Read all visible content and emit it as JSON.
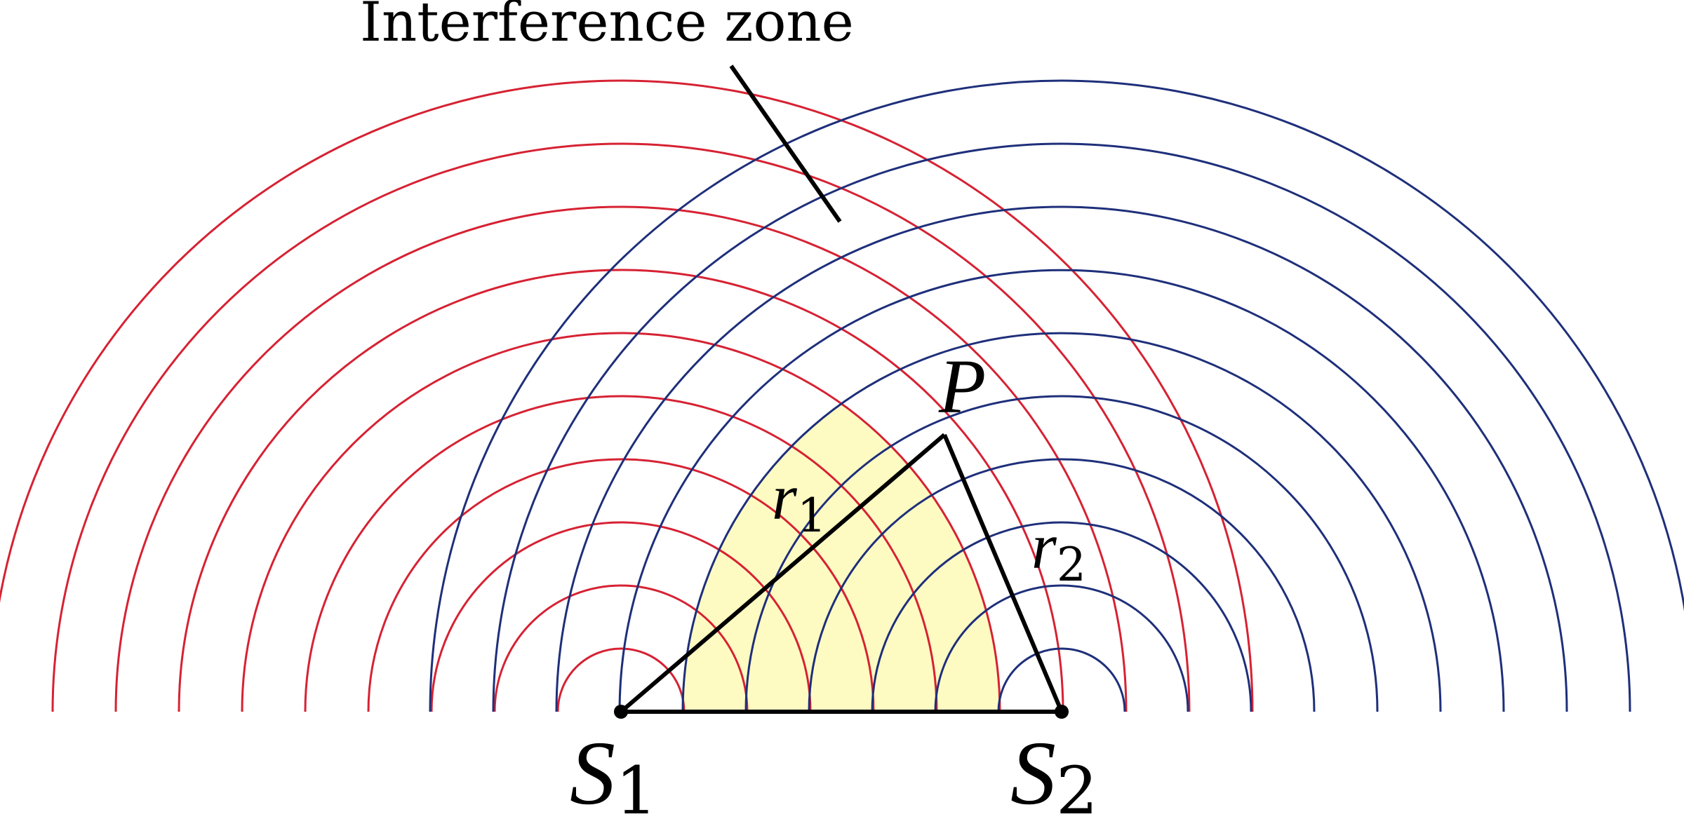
{
  "annotation": {
    "text": "Interference zone"
  },
  "points": {
    "p": {
      "label": "P"
    },
    "s1": {
      "label": "S",
      "sub": "1"
    },
    "s2": {
      "label": "S",
      "sub": "2"
    }
  },
  "segments": {
    "r1": {
      "label": "r",
      "sub": "1"
    },
    "r2": {
      "label": "r",
      "sub": "2"
    }
  },
  "colors": {
    "source1_waves": "#d62233",
    "source2_waves": "#1e2f7a",
    "interference_fill": "#fdfbc2",
    "lines": "#000000"
  }
}
